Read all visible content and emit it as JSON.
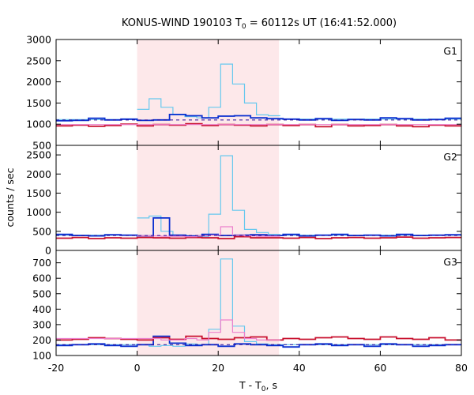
{
  "title": {
    "prefix": "KONUS-WIND 190103 T",
    "sub": "0",
    "suffix": " = 60112s UT (16:41:52.000)"
  },
  "chart_data": {
    "type": "line",
    "title": "KONUS-WIND 190103 T0 = 60112s UT (16:41:52.000)",
    "xlabel": {
      "prefix": "T - T",
      "sub": "0",
      "suffix": ", s"
    },
    "ylabel": "counts / sec",
    "xlim": [
      -20,
      80
    ],
    "x_ticks": [
      -20,
      0,
      20,
      40,
      60,
      80
    ],
    "grid": false,
    "shaded_interval": {
      "x": [
        0,
        35
      ],
      "color": "#fde8ea"
    },
    "colors": {
      "light": "#66c8ee",
      "blue": "#0a2fd0",
      "red": "#c8102e",
      "pink": "#ec80cc",
      "bg_dash": "#2a0a9a"
    },
    "panels": [
      {
        "label": "G1",
        "ylim": [
          500,
          3000
        ],
        "y_ticks": [
          500,
          1000,
          1500,
          2000,
          2500,
          3000
        ],
        "background_level": 1100,
        "series": [
          {
            "style": "light",
            "step": 2.944,
            "x0": 0,
            "values": [
              1350,
              1600,
              1400,
              1220,
              1180,
              1150,
              1400,
              2420,
              1950,
              1500,
              1220,
              1200
            ]
          },
          {
            "style": "light-line",
            "x": [
              -20,
              0
            ],
            "values": [
              1110,
              1110
            ]
          },
          {
            "style": "light-line",
            "x": [
              35,
              80
            ],
            "values": [
              1120,
              1120
            ]
          },
          {
            "style": "blue",
            "step": 4,
            "x0": -20,
            "values": [
              1080,
              1090,
              1140,
              1100,
              1120,
              1090,
              1100,
              1230,
              1200,
              1150,
              1190,
              1200,
              1150,
              1130,
              1120,
              1100,
              1130,
              1090,
              1110,
              1100,
              1150,
              1130,
              1100,
              1110,
              1140
            ]
          },
          {
            "style": "red",
            "step": 4,
            "x0": -20,
            "values": [
              960,
              980,
              950,
              970,
              1000,
              960,
              990,
              980,
              1010,
              970,
              990,
              980,
              960,
              990,
              970,
              990,
              940,
              990,
              960,
              970,
              990,
              960,
              940,
              980,
              960
            ]
          },
          {
            "style": "pink",
            "x": [
              -20,
              80
            ],
            "values": [
              990,
              990
            ]
          }
        ]
      },
      {
        "label": "G2",
        "ylim": [
          0,
          2750
        ],
        "y_ticks": [
          0,
          500,
          1000,
          1500,
          2000,
          2500
        ],
        "background_level": 390,
        "series": [
          {
            "style": "light",
            "step": 2.944,
            "x0": 0,
            "values": [
              850,
              900,
              500,
              400,
              380,
              360,
              950,
              2480,
              1050,
              550,
              470,
              420
            ]
          },
          {
            "style": "light-line",
            "x": [
              -20,
              0
            ],
            "values": [
              400,
              400
            ]
          },
          {
            "style": "light-line",
            "x": [
              35,
              80
            ],
            "values": [
              400,
              400
            ]
          },
          {
            "style": "blue",
            "step": 4,
            "x0": -20,
            "values": [
              420,
              390,
              380,
              410,
              400,
              380,
              850,
              400,
              380,
              420,
              390,
              400,
              410,
              390,
              420,
              380,
              400,
              420,
              390,
              400,
              380,
              420,
              390,
              400,
              410
            ]
          },
          {
            "style": "red",
            "step": 4,
            "x0": -20,
            "values": [
              320,
              340,
              310,
              330,
              320,
              340,
              330,
              320,
              340,
              330,
              310,
              360,
              330,
              330,
              320,
              340,
              310,
              330,
              340,
              320,
              330,
              350,
              320,
              330,
              340
            ]
          },
          {
            "style": "pink",
            "step": 2.944,
            "x0": 0,
            "values": [
              380,
              380,
              370,
              370,
              360,
              380,
              400,
              620,
              400,
              380,
              370,
              370
            ]
          }
        ]
      },
      {
        "label": "G3",
        "ylim": [
          100,
          780
        ],
        "y_ticks": [
          100,
          200,
          300,
          400,
          500,
          600,
          700
        ],
        "background_level": 170,
        "series": [
          {
            "style": "light",
            "step": 2.944,
            "x0": 0,
            "values": [
              170,
              160,
              165,
              160,
              175,
              170,
              270,
              725,
              290,
              190,
              175,
              170
            ]
          },
          {
            "style": "light-line",
            "x": [
              -20,
              0
            ],
            "values": [
              170,
              170
            ]
          },
          {
            "style": "light-line",
            "x": [
              35,
              80
            ],
            "values": [
              170,
              170
            ]
          },
          {
            "style": "blue",
            "step": 4,
            "x0": -20,
            "values": [
              165,
              170,
              175,
              165,
              160,
              170,
              225,
              180,
              165,
              170,
              160,
              175,
              170,
              165,
              155,
              170,
              175,
              165,
              170,
              160,
              175,
              170,
              160,
              165,
              170
            ]
          },
          {
            "style": "red",
            "step": 4,
            "x0": -20,
            "values": [
              200,
              205,
              215,
              210,
              205,
              200,
              215,
              205,
              225,
              210,
              205,
              215,
              220,
              200,
              210,
              205,
              215,
              220,
              210,
              205,
              220,
              210,
              205,
              215,
              200
            ]
          },
          {
            "style": "pink",
            "step": 2.944,
            "x0": 0,
            "values": [
              210,
              210,
              200,
              200,
              210,
              200,
              250,
              330,
              250,
              210,
              200,
              200
            ]
          },
          {
            "style": "pink-line",
            "x": [
              -20,
              0
            ],
            "values": [
              210,
              210
            ]
          }
        ]
      }
    ]
  }
}
